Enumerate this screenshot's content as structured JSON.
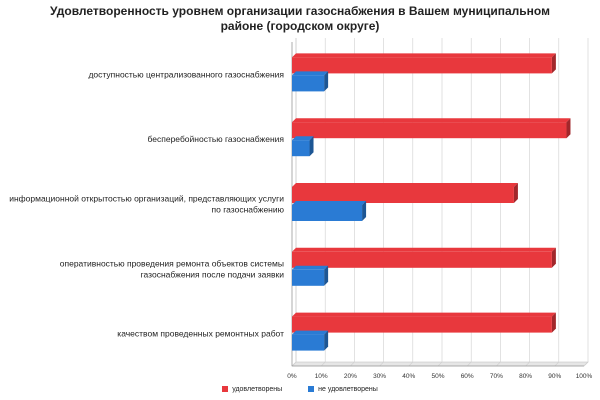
{
  "chart_data": {
    "type": "bar",
    "orientation": "horizontal",
    "title_line1": "Удовлетворенность уровнем организации газоснабжения в Вашем муниципальном",
    "title_line2": "районе (городском округе)",
    "categories": [
      [
        "доступностью централизованного газоснабжения"
      ],
      [
        "бесперебойностью газоснабжения"
      ],
      [
        "информационной открытостью организаций, представляющих услуги",
        "по газоснабжению"
      ],
      [
        "оперативностью проведения ремонта объектов системы",
        "газоснабжения после подачи заявки"
      ],
      [
        "качеством проведенных ремонтных работ"
      ]
    ],
    "series": [
      {
        "name": "удовлетворены",
        "color": "#e8383d",
        "values": [
          89,
          94,
          76,
          89,
          89
        ]
      },
      {
        "name": "не удовлетворены",
        "color": "#2a7bd4",
        "values": [
          11,
          6,
          24,
          11,
          11
        ]
      }
    ],
    "xlim": [
      0,
      100
    ],
    "xticks": [
      "0%",
      "10%",
      "20%",
      "30%",
      "40%",
      "50%",
      "60%",
      "70%",
      "80%",
      "90%",
      "100%"
    ],
    "grid": true,
    "legend_position": "bottom"
  }
}
